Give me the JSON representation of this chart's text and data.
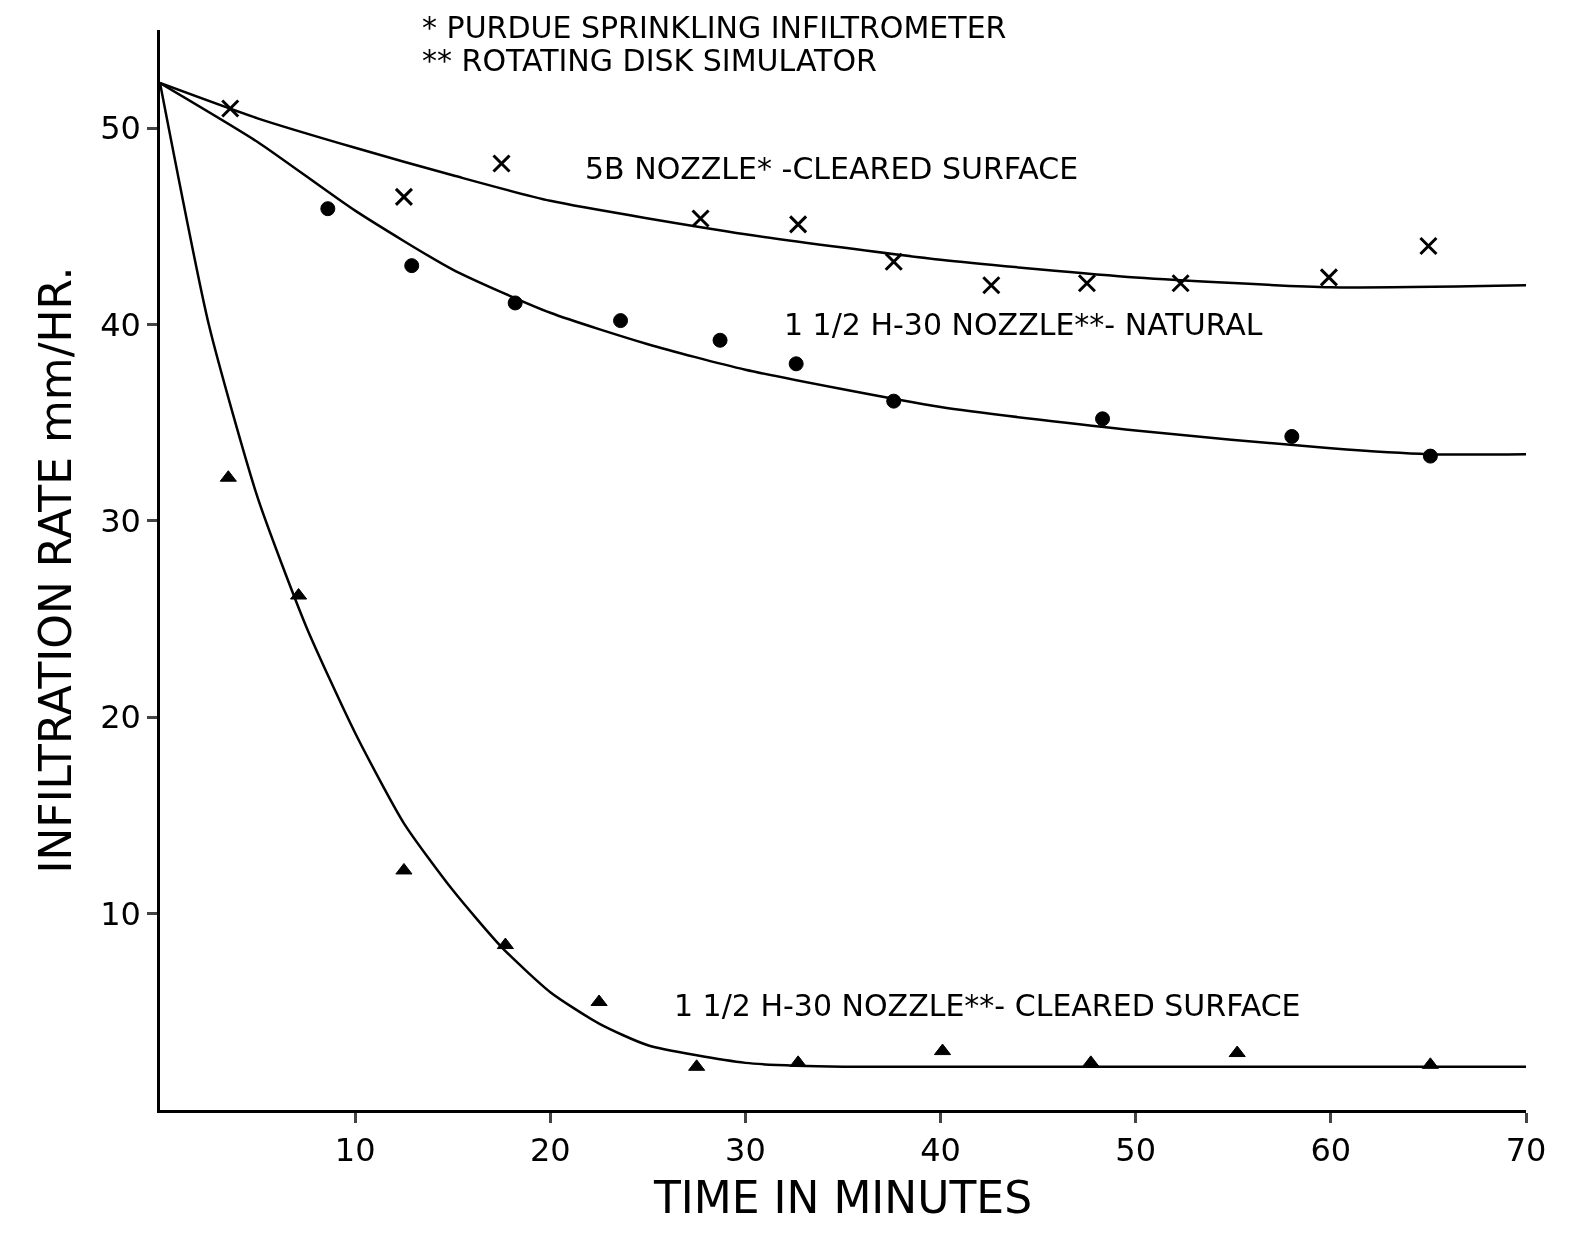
{
  "chart_data": {
    "type": "scatter",
    "xlabel": "TIME IN MINUTES",
    "ylabel": "INFILTRATION RATE mm/HR.",
    "xlim": [
      0,
      70
    ],
    "ylim": [
      0,
      55
    ],
    "xticks": [
      10,
      20,
      30,
      40,
      50,
      60,
      70
    ],
    "yticks": [
      10,
      20,
      30,
      40,
      50
    ],
    "annotations": [
      "* PURDUE SPRINKLING INFILTROMETER",
      "** ROTATING DISK SIMULATOR",
      "5B NOZZLE* -CLEARED SURFACE",
      "1 1/2 H-30 NOZZLE**- NATURAL",
      "1 1/2 H-30 NOZZLE**- CLEARED SURFACE"
    ],
    "series": [
      {
        "marker": "cross",
        "color": "#000000",
        "x": [
          3.6,
          12.5,
          17.5,
          27.7,
          32.7,
          37.6,
          42.6,
          47.5,
          52.3,
          59.9,
          65.0
        ],
        "values": [
          51.0,
          46.5,
          48.2,
          45.4,
          45.1,
          43.2,
          42.0,
          42.1,
          42.1,
          42.4,
          44.0
        ]
      },
      {
        "marker": "circle",
        "color": "#000000",
        "x": [
          8.6,
          12.9,
          18.2,
          23.6,
          28.7,
          32.6,
          37.6,
          48.3,
          58.0,
          65.1
        ],
        "values": [
          45.9,
          43.0,
          41.1,
          40.2,
          39.2,
          38.0,
          36.1,
          35.2,
          34.3,
          33.3
        ]
      },
      {
        "marker": "triangle",
        "color": "#000000",
        "x": [
          3.5,
          7.1,
          12.5,
          17.7,
          22.5,
          27.5,
          32.7,
          40.1,
          47.7,
          55.2,
          65.1
        ],
        "values": [
          32.2,
          26.2,
          12.2,
          8.4,
          5.5,
          2.2,
          2.4,
          3.0,
          2.4,
          2.9,
          2.3
        ]
      },
      {
        "type": "line",
        "marker": "none",
        "line_style": "solid",
        "color": "#000000",
        "x": [
          0,
          5,
          10,
          15,
          20,
          30,
          40,
          50,
          60,
          70
        ],
        "values": [
          52.3,
          50.5,
          49.0,
          47.6,
          46.3,
          44.6,
          43.3,
          42.4,
          41.9,
          42.0
        ]
      },
      {
        "type": "line",
        "marker": "none",
        "line_style": "solid",
        "color": "#000000",
        "x": [
          0,
          5,
          10,
          15,
          20,
          25,
          30,
          40,
          50,
          60,
          65,
          70
        ],
        "values": [
          52.3,
          49.3,
          45.8,
          42.8,
          40.6,
          39.0,
          37.7,
          35.8,
          34.6,
          33.7,
          33.4,
          33.4
        ]
      },
      {
        "type": "line",
        "marker": "none",
        "line_style": "solid",
        "color": "#000000",
        "x": [
          0,
          2.5,
          5,
          7.5,
          10,
          12.5,
          15,
          17.5,
          20,
          22.5,
          25,
          30,
          35,
          70
        ],
        "values": [
          52.3,
          40.0,
          31.2,
          24.6,
          19.2,
          14.6,
          11.2,
          8.3,
          6.0,
          4.4,
          3.3,
          2.4,
          2.2,
          2.2
        ]
      }
    ]
  }
}
